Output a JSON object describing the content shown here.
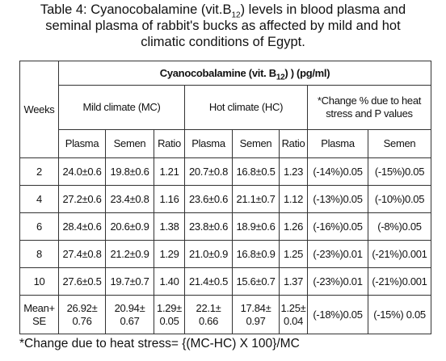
{
  "title": {
    "prefix": "Table 4: Cyanocobalamine (vit.B",
    "subscript": "12",
    "suffix": ") levels in blood plasma and seminal plasma of rabbit's bucks as affected by mild and hot climatic conditions of Egypt."
  },
  "table": {
    "super_header": {
      "prefix": "Cyanocobalamine (vit. B",
      "subscript": "12",
      "suffix": ") ) (pg/ml)"
    },
    "weeks_header": "Weeks",
    "groups": [
      "Mild climate (MC)",
      "Hot climate (HC)",
      "*Change % due to heat stress and P values"
    ],
    "columns": [
      "Plasma",
      "Semen",
      "Ratio",
      "Plasma",
      "Semen",
      "Ratio",
      "Plasma",
      "Semen"
    ],
    "rows": [
      [
        "2",
        "24.0±0.6",
        "19.8±0.6",
        "1.21",
        "20.7±0.8",
        "16.8±0.5",
        "1.23",
        "(-14%)0.05",
        "(-15%)0.05"
      ],
      [
        "4",
        "27.2±0.6",
        "23.4±0.8",
        "1.16",
        "23.6±0.6",
        "21.1±0.7",
        "1.12",
        "(-13%)0.05",
        "(-10%)0.05"
      ],
      [
        "6",
        "28.4±0.6",
        "20.6±0.9",
        "1.38",
        "23.8±0.6",
        "18.9±0.6",
        "1.26",
        "(-16%)0.05",
        "(-8%)0.05"
      ],
      [
        "8",
        "27.4±0.8",
        "21.2±0.9",
        "1.29",
        "21.0±0.9",
        "16.8±0.9",
        "1.25",
        "(-23%)0.01",
        "(-21%)0.001"
      ],
      [
        "10",
        "27.6±0.5",
        "19.7±0.7",
        "1.40",
        "21.4±0.5",
        "15.6±0.7",
        "1.37",
        "(-23%)0.01",
        "(-21%)0.001"
      ],
      [
        "Mean+ SE",
        "26.92± 0.76",
        "20.94± 0.67",
        "1.29± 0.05",
        "22.1± 0.66",
        "17.84± 0.97",
        "1.25± 0.04",
        "(-18%)0.05",
        "(-15%) 0.05"
      ]
    ]
  },
  "footnote": "*Change due to heat stress= {(MC-HC) X 100}/MC"
}
